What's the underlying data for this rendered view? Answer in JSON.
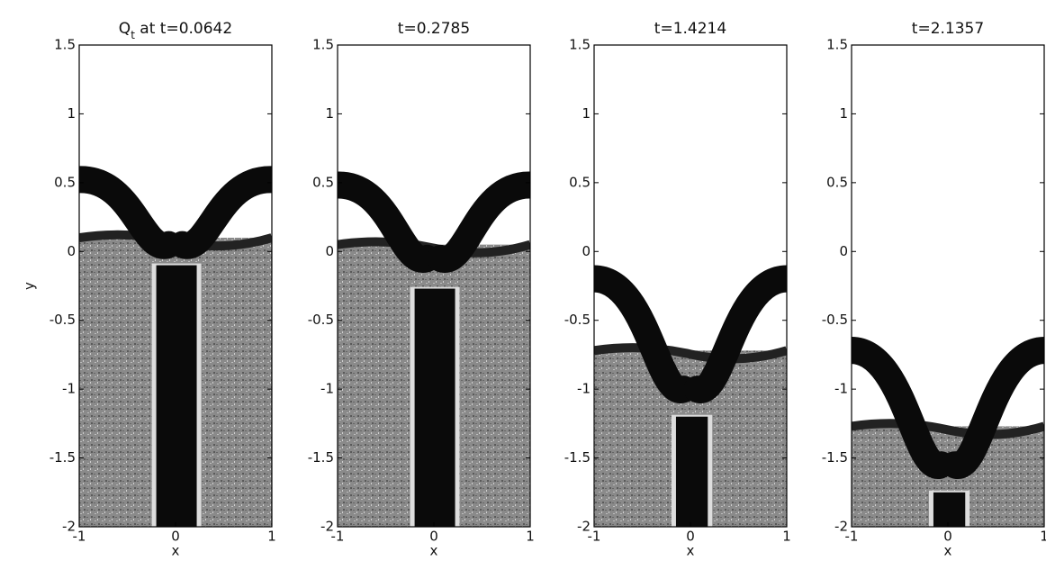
{
  "chart_data": [
    {
      "type": "field",
      "quantity": "Q",
      "subscript": "t",
      "title": " at t=0.0642",
      "xlabel": "x",
      "ylabel": "y",
      "xlim": [
        -1,
        1
      ],
      "ylim": [
        -2,
        1.5
      ],
      "xticks": [
        -1,
        0,
        1
      ],
      "yticks": [
        -2,
        -1.5,
        -1,
        -0.5,
        0,
        0.5,
        1,
        1.5
      ]
    },
    {
      "type": "field",
      "title": "t=0.2785",
      "xlabel": "x",
      "xlim": [
        -1,
        1
      ],
      "ylim": [
        -2,
        1.5
      ],
      "xticks": [
        -1,
        0,
        1
      ],
      "yticks": [
        -2,
        -1.5,
        -1,
        -0.5,
        0,
        0.5,
        1,
        1.5
      ]
    },
    {
      "type": "field",
      "title": "t=1.4214",
      "xlabel": "x",
      "xlim": [
        -1,
        1
      ],
      "ylim": [
        -2,
        1.5
      ],
      "xticks": [
        -1,
        0,
        1
      ],
      "yticks": [
        -2,
        -1.5,
        -1,
        -0.5,
        0,
        0.5,
        1,
        1.5
      ]
    },
    {
      "type": "field",
      "title": "t=2.1357",
      "xlabel": "x",
      "xlim": [
        -1,
        1
      ],
      "ylim": [
        -2,
        1.5
      ],
      "xticks": [
        -1,
        0,
        1
      ],
      "yticks": [
        -2,
        -1.5,
        -1,
        -0.5,
        0,
        0.5,
        1,
        1.5
      ]
    }
  ]
}
